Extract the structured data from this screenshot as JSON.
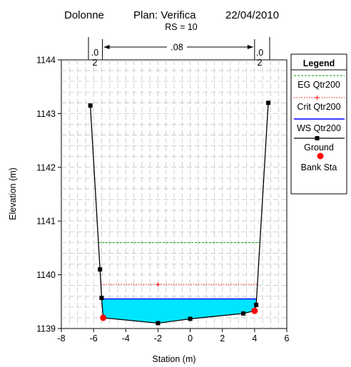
{
  "header": {
    "location": "Dolonne",
    "plan": "Plan: Verifica",
    "date": "22/04/2010",
    "rs": "RS = 10"
  },
  "chart_data": {
    "type": "line",
    "xlabel": "Station (m)",
    "ylabel": "Elevation (m)",
    "xlim": [
      -8,
      6
    ],
    "ylim": [
      1139,
      1144
    ],
    "x_ticks": [
      "-8",
      "-6",
      "-4",
      "-2",
      "0",
      "2",
      "4",
      "6"
    ],
    "y_ticks": [
      "1139",
      "1140",
      "1141",
      "1142",
      "1143",
      "1144"
    ],
    "grid": true,
    "legend_position": "right",
    "manning": {
      "left_value": ".0",
      "left_value2": "2",
      "center_value": ".08",
      "right_value": ".0",
      "right_value2": "2",
      "left_station": -5.45,
      "right_station": 4.0
    },
    "ground": {
      "name": "Ground",
      "color": "#000000",
      "points": [
        [
          -6.2,
          1143.15
        ],
        [
          -5.6,
          1140.1
        ],
        [
          -5.5,
          1139.57
        ],
        [
          -5.4,
          1139.2
        ],
        [
          -2.0,
          1139.1
        ],
        [
          0.0,
          1139.18
        ],
        [
          3.3,
          1139.28
        ],
        [
          4.0,
          1139.33
        ],
        [
          4.1,
          1139.44
        ],
        [
          4.85,
          1143.2
        ]
      ]
    },
    "ground_markers": [
      [
        -6.2,
        1143.15
      ],
      [
        -5.6,
        1140.1
      ],
      [
        -5.5,
        1139.57
      ],
      [
        -2.0,
        1139.1
      ],
      [
        0.0,
        1139.18
      ],
      [
        3.3,
        1139.28
      ],
      [
        4.1,
        1139.44
      ],
      [
        4.85,
        1143.2
      ]
    ],
    "bank_stations": [
      [
        -5.4,
        1139.2
      ],
      [
        4.0,
        1139.33
      ]
    ],
    "ws": {
      "name": "WS Qtr200",
      "elevation": 1139.55,
      "color": "#0000ff",
      "fill": "#00e5ff"
    },
    "eg": {
      "name": "EG Qtr200",
      "elevation": 1140.6,
      "color": "#00a000"
    },
    "crit": {
      "name": "Crit Qtr200",
      "elevation": 1139.82,
      "color": "#ff0000"
    },
    "legend": {
      "title": "Legend",
      "entries": [
        {
          "label": "EG Qtr200",
          "style": "dashed-green"
        },
        {
          "label": "Crit Qtr200",
          "style": "dotted-red-plus"
        },
        {
          "label": "WS Qtr200",
          "style": "solid-blue"
        },
        {
          "label": "Ground",
          "style": "black-square"
        },
        {
          "label": "Bank Sta",
          "style": "red-dot"
        }
      ]
    }
  }
}
